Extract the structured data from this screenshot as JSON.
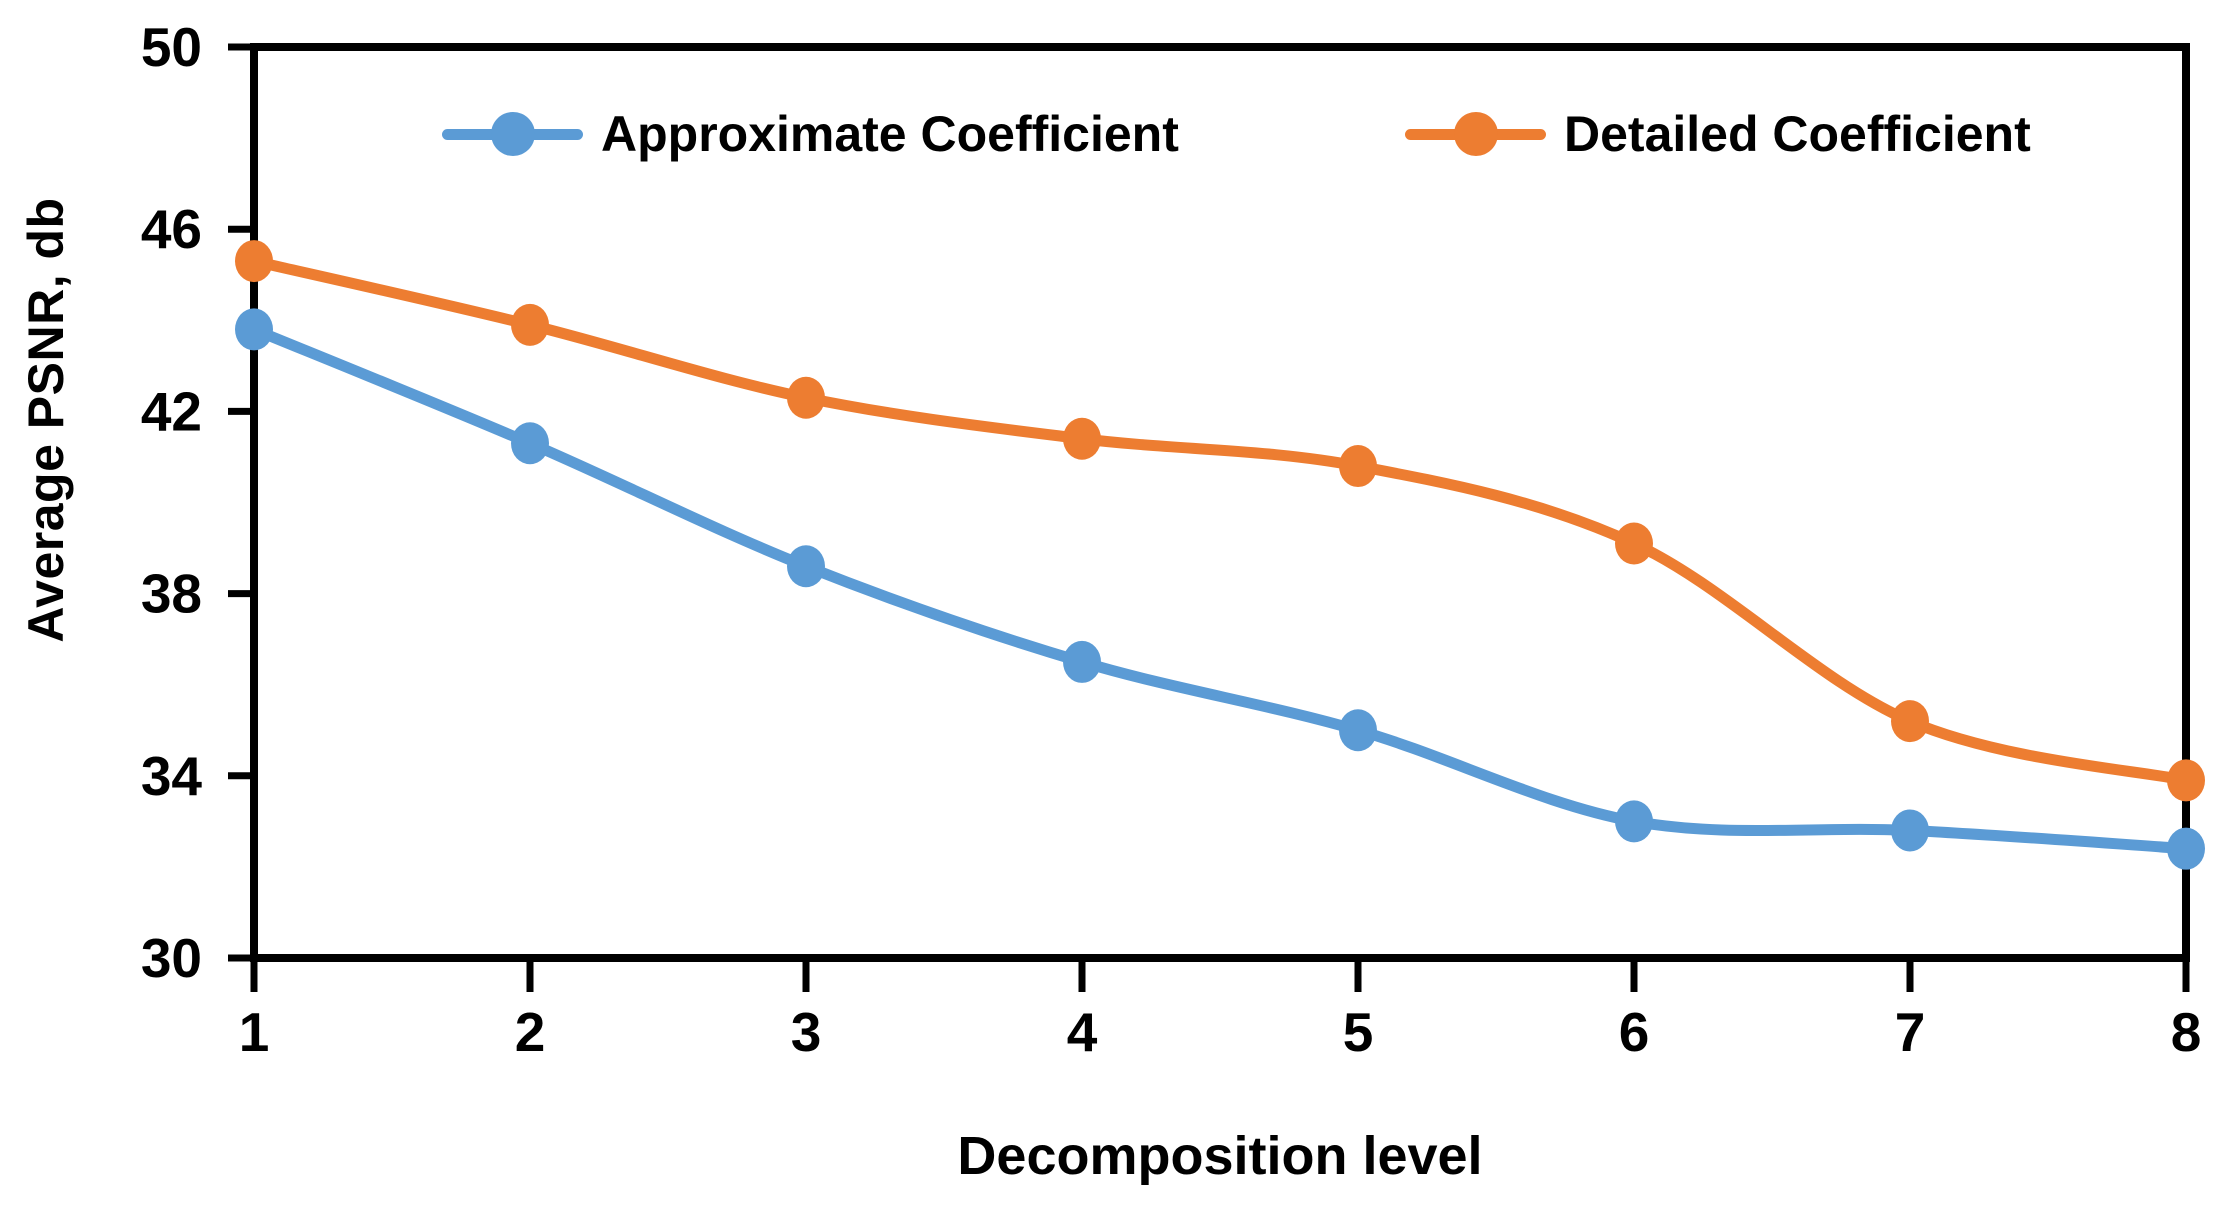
{
  "chart_data": {
    "type": "line",
    "title": "",
    "xlabel": "Decomposition level",
    "ylabel": "Average PSNR, db",
    "x": [
      1,
      2,
      3,
      4,
      5,
      6,
      7,
      8
    ],
    "xticks": [
      "1",
      "2",
      "3",
      "4",
      "5",
      "6",
      "7",
      "8"
    ],
    "yticks": [
      "30",
      "34",
      "38",
      "42",
      "46",
      "50"
    ],
    "ylim": [
      30,
      50
    ],
    "xlim": [
      1,
      8
    ],
    "grid": false,
    "legend_position": "top-inside",
    "line_style": "smooth",
    "marker": "circle",
    "axis_color": "#000000",
    "text_color": "#000000",
    "background_color": "#ffffff",
    "series": [
      {
        "name": "Approximate Coefficient",
        "color": "#5B9BD5",
        "values": [
          43.8,
          41.3,
          38.6,
          36.5,
          35.0,
          33.0,
          32.8,
          32.4
        ]
      },
      {
        "name": "Detailed Coefficient",
        "color": "#ED7D31",
        "values": [
          45.3,
          43.9,
          42.3,
          41.4,
          40.8,
          39.1,
          35.2,
          33.9
        ]
      }
    ]
  }
}
